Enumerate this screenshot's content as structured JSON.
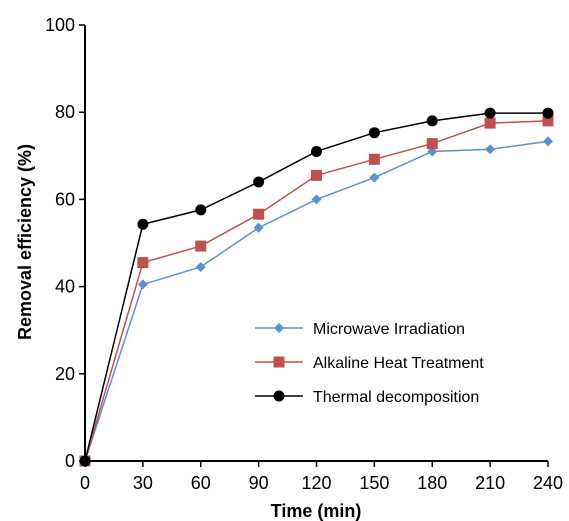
{
  "chart_data": {
    "type": "line",
    "title": "",
    "xlabel": "Time (min)",
    "ylabel": "Removal efficiency (%)",
    "xlim": [
      0,
      240
    ],
    "ylim": [
      0,
      100
    ],
    "xticks": [
      0,
      30,
      60,
      90,
      120,
      150,
      180,
      210,
      240
    ],
    "yticks": [
      0,
      20,
      40,
      60,
      80,
      100
    ],
    "grid": false,
    "legend_position": "bottom-right",
    "x": [
      0,
      30,
      60,
      90,
      120,
      150,
      180,
      210,
      240
    ],
    "series": [
      {
        "name": "Microwave Irradiation",
        "color": "#5b8fd6",
        "marker": "diamond",
        "values": [
          0,
          40.5,
          44.5,
          53.5,
          60,
          65,
          71,
          71.5,
          73.3
        ]
      },
      {
        "name": "Alkaline Heat Treatment",
        "color": "#c0504d",
        "marker": "square",
        "values": [
          0,
          45.5,
          49.3,
          56.6,
          65.5,
          69.2,
          72.8,
          77.5,
          78
        ]
      },
      {
        "name": "Thermal decomposition",
        "color": "#000000",
        "marker": "circle",
        "values": [
          0,
          54.3,
          57.6,
          64,
          71,
          75.3,
          78,
          79.8,
          79.8
        ]
      }
    ]
  }
}
